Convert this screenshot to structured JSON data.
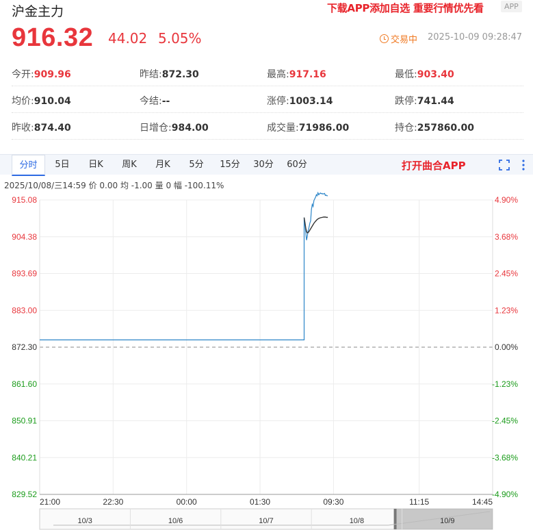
{
  "header": {
    "title": "沪金主力",
    "promo": "下载APP添加自选 重要行情优先看",
    "app_badge": "APP"
  },
  "quote": {
    "price": "916.32",
    "change": "44.02",
    "change_pct": "5.05%",
    "status": "交易中",
    "datetime": "2025-10-09 09:28:47"
  },
  "stats": [
    [
      {
        "label": "今开:",
        "value": "909.96",
        "color": "red"
      },
      {
        "label": "昨结:",
        "value": "872.30",
        "color": "black"
      },
      {
        "label": "最高:",
        "value": "917.16",
        "color": "red"
      },
      {
        "label": "最低:",
        "value": "903.40",
        "color": "red"
      }
    ],
    [
      {
        "label": "均价:",
        "value": "910.04",
        "color": "black"
      },
      {
        "label": "今结:",
        "value": "--",
        "color": "black"
      },
      {
        "label": "涨停:",
        "value": "1003.14",
        "color": "black"
      },
      {
        "label": "跌停:",
        "value": "741.44",
        "color": "black"
      }
    ],
    [
      {
        "label": "昨收:",
        "value": "874.40",
        "color": "black"
      },
      {
        "label": "日增仓:",
        "value": "984.00",
        "color": "black"
      },
      {
        "label": "成交量:",
        "value": "71986.00",
        "color": "black"
      },
      {
        "label": "持仓:",
        "value": "257860.00",
        "color": "black"
      }
    ]
  ],
  "tabs": [
    "分时",
    "5日",
    "日K",
    "周K",
    "月K",
    "5分",
    "15分",
    "30分",
    "60分"
  ],
  "active_tab": 0,
  "open_app": "打开曲合APP",
  "icons": {
    "expand": "expand-icon",
    "more": "more-vertical-icon"
  },
  "info_line": "2025/10/08/三14:59  价 0.00  均 -1.00  量 0  幅 -100.11%",
  "colors": {
    "up": "#e8363c",
    "down": "#1a9b1a",
    "price_line": "#2b85c8",
    "avg_line": "#333333",
    "accent": "#2d6ae3",
    "promo": "#e8242b"
  },
  "chart_data": {
    "type": "line",
    "base": 872.3,
    "y_ticks": [
      "915.08",
      "904.38",
      "893.69",
      "883.00",
      "872.30",
      "861.60",
      "850.91",
      "840.21",
      "829.52"
    ],
    "y_pct_ticks": [
      "4.90%",
      "3.68%",
      "2.45%",
      "1.23%",
      "0.00%",
      "-1.23%",
      "-2.45%",
      "-3.68%",
      "-4.90%"
    ],
    "ylim": [
      829.52,
      915.08
    ],
    "x_ticks": [
      "21:00",
      "22:30",
      "00:00",
      "01:30",
      "09:30",
      "11:15",
      "14:45"
    ],
    "x_session_minutes": 555,
    "session_breaks": [
      {
        "label": "21:00",
        "minute": 0
      },
      {
        "label": "22:30",
        "minute": 90
      },
      {
        "label": "00:00",
        "minute": 180
      },
      {
        "label": "01:30",
        "minute": 270
      },
      {
        "label": "09:30",
        "minute": 360
      },
      {
        "label": "11:15",
        "minute": 465
      },
      {
        "label": "14:45",
        "minute": 555
      }
    ],
    "series": [
      {
        "key": "price",
        "x": [
          0,
          324,
          324,
          325,
          326,
          327,
          328,
          329,
          330,
          331,
          332,
          333,
          334,
          335,
          336,
          337,
          338,
          339,
          340,
          341,
          342,
          343,
          344,
          345,
          346,
          347,
          348,
          349,
          350,
          351,
          352,
          353
        ],
        "y": [
          874.4,
          874.4,
          909.96,
          907.9,
          905.6,
          903.4,
          904.6,
          906.2,
          907.1,
          908.3,
          909.0,
          912.4,
          913.8,
          913.2,
          914.9,
          915.4,
          915.9,
          916.6,
          916.3,
          917.16,
          916.6,
          916.9,
          917.1,
          916.9,
          917.0,
          916.8,
          916.9,
          917.0,
          916.4,
          916.5,
          916.3,
          916.32
        ]
      },
      {
        "key": "avg",
        "x": [
          324,
          325,
          326,
          327,
          328,
          329,
          330,
          332,
          334,
          336,
          338,
          340,
          342,
          344,
          346,
          348,
          350,
          352,
          353
        ],
        "y": [
          909.96,
          908.5,
          906.9,
          905.9,
          905.5,
          905.6,
          905.9,
          906.7,
          907.5,
          908.3,
          908.9,
          909.4,
          909.7,
          909.9,
          910.0,
          910.1,
          910.1,
          910.0,
          910.04
        ]
      }
    ],
    "navigator": {
      "labels": [
        "10/3",
        "10/6",
        "10/7",
        "10/8",
        "10/9"
      ],
      "selected": 4
    }
  }
}
